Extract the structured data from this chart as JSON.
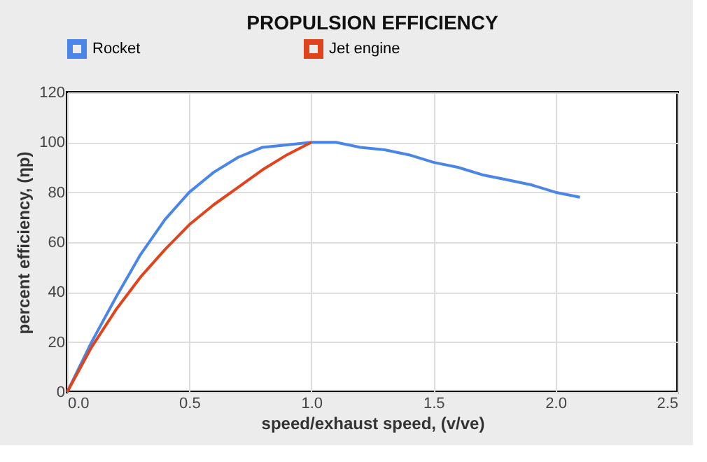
{
  "chart_data": {
    "type": "line",
    "title": "PROPULSION EFFICIENCY",
    "xlabel": "speed/exhaust speed, (v/ve)",
    "ylabel": "percent efficiency, (ηp)",
    "series": [
      {
        "name": "Rocket",
        "color": "#4a86e8",
        "x": [
          0,
          0.1,
          0.2,
          0.3,
          0.4,
          0.5,
          0.6,
          0.7,
          0.8,
          0.9,
          1.0,
          1.1,
          1.2,
          1.3,
          1.4,
          1.5,
          1.6,
          1.7,
          1.8,
          1.9,
          2.0,
          2.1
        ],
        "values": [
          0,
          20,
          38,
          55,
          69,
          80,
          88,
          94,
          98,
          99,
          100,
          100,
          98,
          97,
          95,
          92,
          90,
          87,
          85,
          83,
          80,
          78
        ]
      },
      {
        "name": "Jet engine",
        "color": "#e0441c",
        "x": [
          0,
          0.1,
          0.2,
          0.3,
          0.4,
          0.5,
          0.6,
          0.7,
          0.8,
          0.9,
          1.0
        ],
        "values": [
          0,
          18,
          33,
          46,
          57,
          67,
          75,
          82,
          89,
          95,
          100
        ]
      }
    ],
    "xlim": [
      0,
      2.5
    ],
    "xticks": [
      {
        "value": 0,
        "label": "0.0"
      },
      0.5,
      {
        "value": 1,
        "label": "1.0"
      },
      1.5,
      {
        "value": 2,
        "label": "2.0"
      },
      2.5
    ],
    "ylim": [
      0,
      120
    ],
    "yticks": [
      0,
      20,
      40,
      60,
      80,
      100,
      120
    ],
    "grid": true,
    "legend": "top",
    "marker": "none",
    "line_style": "solid"
  }
}
